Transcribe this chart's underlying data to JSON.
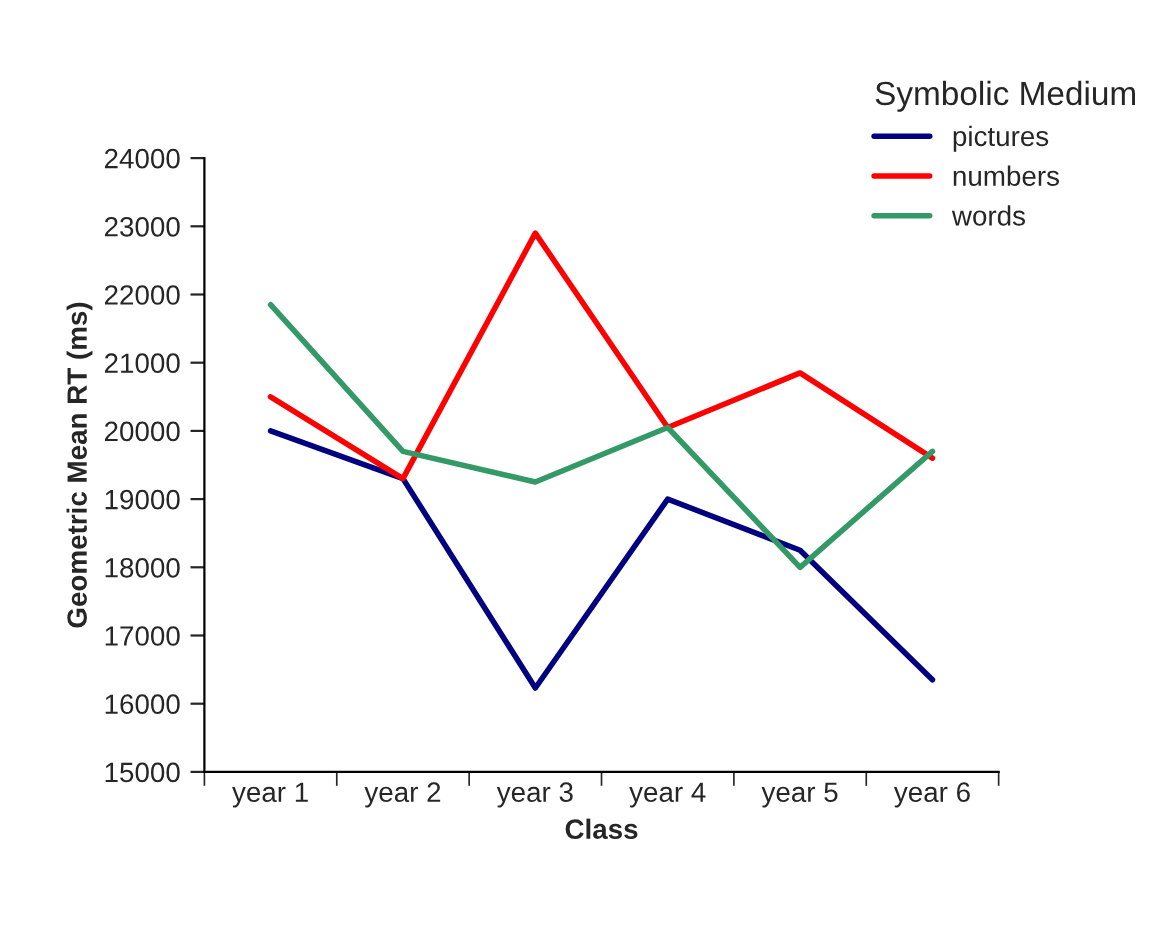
{
  "chart_data": {
    "type": "line",
    "xlabel": "Class",
    "ylabel": "Geometric Mean RT (ms)",
    "legend_title": "Symbolic Medium",
    "categories": [
      "year 1",
      "year 2",
      "year 3",
      "year 4",
      "year 5",
      "year 6"
    ],
    "series": [
      {
        "name": "pictures",
        "color": "#000080",
        "values": [
          20000,
          19300,
          16230,
          19000,
          18250,
          16350
        ]
      },
      {
        "name": "numbers",
        "color": "#ff0000",
        "values": [
          20500,
          19300,
          22900,
          20050,
          20850,
          19600
        ]
      },
      {
        "name": "words",
        "color": "#339966",
        "values": [
          21850,
          19700,
          19250,
          20050,
          18000,
          19700
        ]
      }
    ],
    "ylim": [
      15000,
      24000
    ],
    "yticks": [
      15000,
      16000,
      17000,
      18000,
      19000,
      20000,
      21000,
      22000,
      23000,
      24000
    ],
    "grid": false,
    "legend": "top right",
    "marker": "none",
    "line_style": "solid"
  }
}
